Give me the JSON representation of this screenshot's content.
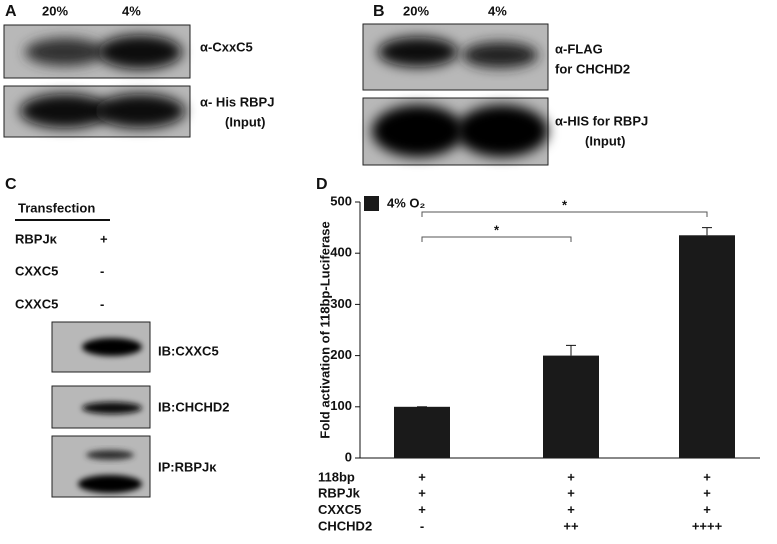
{
  "panel_a": {
    "label": "A",
    "lanes": [
      "20%",
      "4%"
    ],
    "blots": [
      "α-CxxC5",
      "α- His RBPJ"
    ],
    "blot_note": "(Input)"
  },
  "panel_b": {
    "label": "B",
    "lanes": [
      "20%",
      "4%"
    ],
    "blots": [
      [
        "α-FLAG",
        "for CHCHD2"
      ],
      [
        "α-HIS for RBPJ",
        "(Input)"
      ]
    ]
  },
  "panel_c": {
    "label": "C",
    "header": "Transfection",
    "rows": [
      {
        "name": "RBPJκ",
        "mark": "+"
      },
      {
        "name": "CXXC5",
        "mark": "-"
      },
      {
        "name": "CXXC5",
        "mark": "-"
      }
    ],
    "blots": [
      "IB:CXXC5",
      "IB:CHCHD2",
      "IP:RBPJκ"
    ]
  },
  "chart_data": {
    "type": "bar",
    "panel_label": "D",
    "y_label": "Fold activation of  118bp-Luciferase",
    "categories": [
      null,
      null,
      null
    ],
    "series": [
      {
        "name": "4% O₂",
        "color": "#1a1a1a",
        "values": [
          100,
          200,
          435
        ],
        "errors": [
          0,
          20,
          15
        ]
      }
    ],
    "ylim": [
      0,
      500
    ],
    "yticks": [
      0,
      100,
      200,
      300,
      400,
      500
    ],
    "significance": [
      {
        "from": 0,
        "to": 1,
        "label": "*"
      },
      {
        "from": 0,
        "to": 2,
        "label": "*"
      }
    ],
    "conditions": [
      {
        "name": "118bp",
        "marks": [
          "+",
          "+",
          "+"
        ]
      },
      {
        "name": "RBPJk",
        "marks": [
          "+",
          "+",
          "+"
        ]
      },
      {
        "name": "CXXC5",
        "marks": [
          "+",
          "+",
          "+"
        ]
      },
      {
        "name": "CHCHD2",
        "marks": [
          "-",
          "++",
          "++++"
        ]
      }
    ]
  }
}
